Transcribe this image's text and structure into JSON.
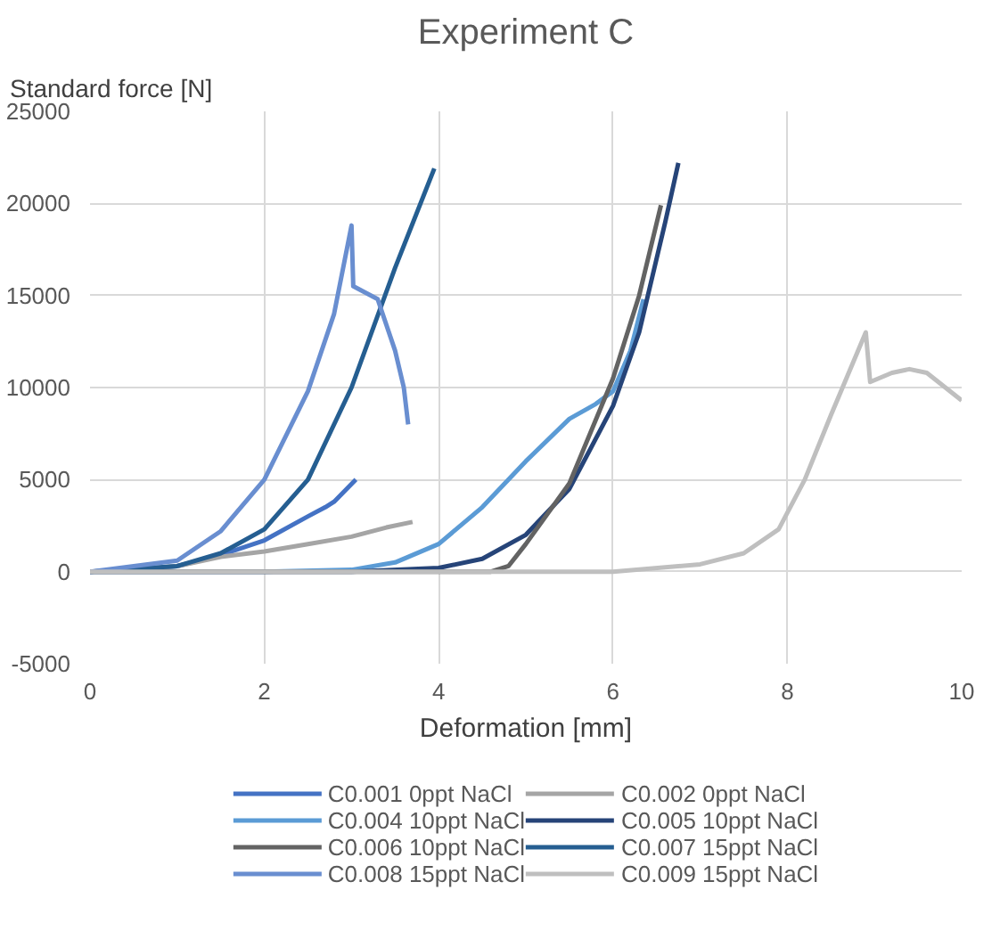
{
  "chart_data": {
    "type": "line",
    "title": "Experiment C",
    "xlabel": "Deformation [mm]",
    "ylabel": "Standard force [N]",
    "xlim": [
      0,
      10
    ],
    "xticks": [
      0,
      2,
      4,
      6,
      8,
      10
    ],
    "ylim": [
      -5000,
      25000
    ],
    "yticks": [
      -5000,
      0,
      5000,
      10000,
      15000,
      20000,
      25000
    ],
    "grid": true,
    "legend": "bottom",
    "line_style": "solid",
    "marker": "none",
    "series": [
      {
        "name": "C0.001 0ppt NaCl",
        "color": "#4472c4",
        "x": [
          0,
          0.5,
          1,
          1.5,
          2,
          2.5,
          2.7,
          2.8,
          3.05
        ],
        "values": [
          0,
          100,
          300,
          900,
          1700,
          3000,
          3500,
          3800,
          5000
        ]
      },
      {
        "name": "C0.002 0ppt NaCl",
        "color": "#a5a5a5",
        "x": [
          0,
          1,
          1.5,
          2,
          2.5,
          3,
          3.4,
          3.7
        ],
        "values": [
          0,
          300,
          800,
          1100,
          1500,
          1900,
          2400,
          2700
        ]
      },
      {
        "name": "C0.004 10ppt NaCl",
        "color": "#5b9bd5",
        "x": [
          0,
          2,
          3,
          3.5,
          4,
          4.5,
          5,
          5.5,
          5.8,
          6.0,
          6.2,
          6.35
        ],
        "values": [
          0,
          0,
          100,
          500,
          1500,
          3500,
          6000,
          8300,
          9100,
          9800,
          12000,
          14800
        ]
      },
      {
        "name": "C0.005 10ppt NaCl",
        "color": "#264478",
        "x": [
          0,
          3,
          4,
          4.5,
          5,
          5.5,
          6,
          6.3,
          6.6,
          6.75
        ],
        "values": [
          0,
          0,
          200,
          700,
          2000,
          4500,
          9000,
          13000,
          19000,
          22200
        ]
      },
      {
        "name": "C0.006 10ppt NaCl",
        "color": "#636363",
        "x": [
          0,
          4.6,
          4.8,
          5,
          5.5,
          6,
          6.3,
          6.55
        ],
        "values": [
          0,
          0,
          300,
          1500,
          4800,
          10500,
          15000,
          19900
        ]
      },
      {
        "name": "C0.007 15ppt NaCl",
        "color": "#255e91",
        "x": [
          0,
          1,
          1.5,
          2,
          2.5,
          3,
          3.5,
          3.95
        ],
        "values": [
          0,
          300,
          1000,
          2300,
          5000,
          10000,
          16500,
          21900
        ]
      },
      {
        "name": "C0.008 15ppt NaCl",
        "color": "#698ed0",
        "x": [
          0,
          1,
          1.5,
          2,
          2.5,
          2.8,
          3.0,
          3.02,
          3.3,
          3.5,
          3.6,
          3.65
        ],
        "values": [
          0,
          600,
          2200,
          5000,
          9800,
          14000,
          18800,
          15500,
          14800,
          12000,
          10000,
          8000
        ]
      },
      {
        "name": "C0.009 15ppt NaCl",
        "color": "#bfbfbf",
        "x": [
          0,
          6,
          7,
          7.5,
          7.9,
          8.2,
          8.5,
          8.9,
          8.95,
          9.2,
          9.4,
          9.6,
          10
        ],
        "values": [
          0,
          0,
          400,
          1000,
          2300,
          5000,
          8500,
          13000,
          10300,
          10800,
          11000,
          10800,
          9300
        ]
      }
    ]
  }
}
